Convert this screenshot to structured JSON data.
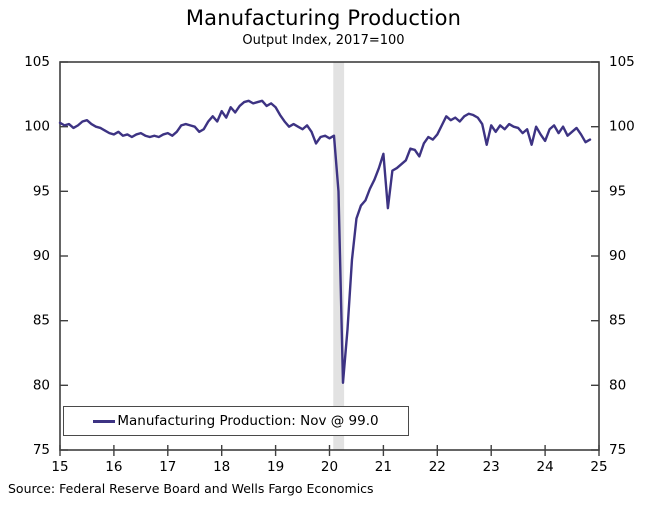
{
  "chart_data": {
    "type": "line",
    "title": "Manufacturing Production",
    "subtitle": "Output Index, 2017=100",
    "xlabel": "",
    "ylabel": "",
    "xlim": [
      2015,
      2025
    ],
    "ylim": [
      75,
      105
    ],
    "x_ticks": [
      "15",
      "16",
      "17",
      "18",
      "19",
      "20",
      "21",
      "22",
      "23",
      "24",
      "25"
    ],
    "x_tick_values": [
      2015,
      2016,
      2017,
      2018,
      2019,
      2020,
      2021,
      2022,
      2023,
      2024,
      2025
    ],
    "y_ticks": [
      "75",
      "80",
      "85",
      "90",
      "95",
      "100",
      "105"
    ],
    "y_tick_values": [
      75,
      80,
      85,
      90,
      95,
      100,
      105
    ],
    "grid": false,
    "legend_position": "bottom-left",
    "recession_band": {
      "x_start": 2020.07,
      "x_end": 2020.27,
      "color": "#e2e2e2"
    },
    "series": [
      {
        "name": "Manufacturing Production",
        "color": "#3d3383",
        "x_start_year": 2015,
        "x_step_months": 1,
        "values": [
          100.3,
          100.1,
          100.2,
          99.9,
          100.1,
          100.4,
          100.5,
          100.2,
          100.0,
          99.9,
          99.7,
          99.5,
          99.4,
          99.6,
          99.3,
          99.4,
          99.2,
          99.4,
          99.5,
          99.3,
          99.2,
          99.3,
          99.2,
          99.4,
          99.5,
          99.3,
          99.6,
          100.1,
          100.2,
          100.1,
          100.0,
          99.6,
          99.8,
          100.4,
          100.8,
          100.4,
          101.2,
          100.7,
          101.5,
          101.1,
          101.6,
          101.9,
          102.0,
          101.8,
          101.9,
          102.0,
          101.6,
          101.8,
          101.5,
          100.9,
          100.4,
          100.0,
          100.2,
          100.0,
          99.8,
          100.1,
          99.6,
          98.7,
          99.2,
          99.3,
          99.1,
          99.3,
          95.0,
          80.2,
          84.3,
          89.7,
          92.9,
          93.9,
          94.3,
          95.2,
          95.9,
          96.8,
          97.9,
          93.7,
          96.6,
          96.8,
          97.1,
          97.4,
          98.3,
          98.2,
          97.7,
          98.7,
          99.2,
          99.0,
          99.4,
          100.1,
          100.8,
          100.5,
          100.7,
          100.4,
          100.8,
          101.0,
          100.9,
          100.7,
          100.2,
          98.6,
          100.1,
          99.6,
          100.1,
          99.8,
          100.2,
          100.0,
          99.9,
          99.5,
          99.8,
          98.6,
          100.0,
          99.4,
          98.9,
          99.8,
          100.1,
          99.5,
          100.0,
          99.3,
          99.6,
          99.9,
          99.4,
          98.8,
          99.0
        ]
      }
    ],
    "legend": {
      "label": "Manufacturing Production: Nov @ 99.0"
    }
  },
  "source_note": "Source: Federal Reserve Board and Wells Fargo Economics",
  "colors": {
    "axis": "#3f3f3f",
    "text": "#000000",
    "line": "#3d3383",
    "band": "#e2e2e2",
    "background": "#ffffff"
  }
}
